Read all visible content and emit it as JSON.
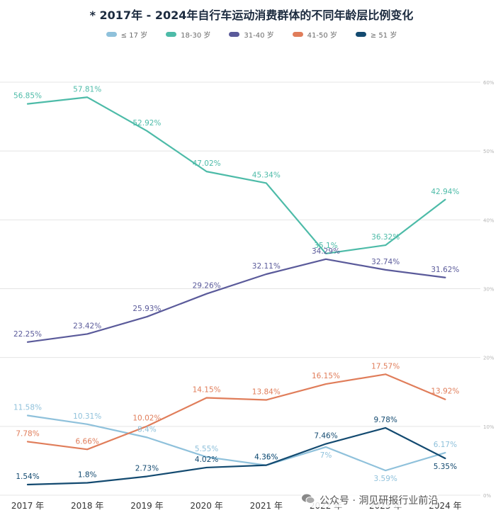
{
  "chart_data": {
    "type": "line",
    "title": "* 2017年 - 2024年自行车运动消费群体的不同年龄层比例变化",
    "x": [
      "2017 年",
      "2018 年",
      "2019 年",
      "2020 年",
      "2021 年",
      "2022 年",
      "2023 年",
      "2024 年"
    ],
    "ylim": [
      0,
      60
    ],
    "y_ticks": [
      "0%",
      "10%",
      "20%",
      "30%",
      "40%",
      "50%",
      "60%"
    ],
    "y_tick_values": [
      0,
      10,
      20,
      30,
      40,
      50,
      60
    ],
    "grid": true,
    "legend_position": "top-center",
    "series": [
      {
        "name": "≤ 17 岁",
        "color": "#8fc1db",
        "values": [
          11.58,
          10.31,
          8.4,
          5.55,
          4.35,
          7,
          3.59,
          6.17
        ],
        "labels": [
          "11.58%",
          "10.31%",
          "8.4%",
          "5.55%",
          "4.35%",
          "7%",
          "3.59%",
          "6.17%"
        ]
      },
      {
        "name": "18-30 岁",
        "color": "#4dbba8",
        "values": [
          56.85,
          57.81,
          52.92,
          47.02,
          45.34,
          35.1,
          36.32,
          42.94
        ],
        "labels": [
          "56.85%",
          "57.81%",
          "52.92%",
          "47.02%",
          "45.34%",
          "35.1%",
          "36.32%",
          "42.94%"
        ]
      },
      {
        "name": "31-40 岁",
        "color": "#5a5a9a",
        "values": [
          22.25,
          23.42,
          25.93,
          29.26,
          32.11,
          34.29,
          32.74,
          31.62
        ],
        "labels": [
          "22.25%",
          "23.42%",
          "25.93%",
          "29.26%",
          "32.11%",
          "34.29%",
          "32.74%",
          "31.62%"
        ]
      },
      {
        "name": "41-50 岁",
        "color": "#e07d5a",
        "values": [
          7.78,
          6.66,
          10.02,
          14.15,
          13.84,
          16.15,
          17.57,
          13.92
        ],
        "labels": [
          "7.78%",
          "6.66%",
          "10.02%",
          "14.15%",
          "13.84%",
          "16.15%",
          "17.57%",
          "13.92%"
        ]
      },
      {
        "name": "≥ 51 岁",
        "color": "#134a70",
        "values": [
          1.54,
          1.8,
          2.73,
          4.02,
          4.36,
          7.46,
          9.78,
          5.35
        ],
        "labels": [
          "1.54%",
          "1.8%",
          "2.73%",
          "4.02%",
          "4.36%",
          "7.46%",
          "9.78%",
          "5.35%"
        ]
      }
    ]
  },
  "watermark": {
    "text": "公众号 · 洞见研报行业前沿",
    "icon": "wechat-icon"
  }
}
